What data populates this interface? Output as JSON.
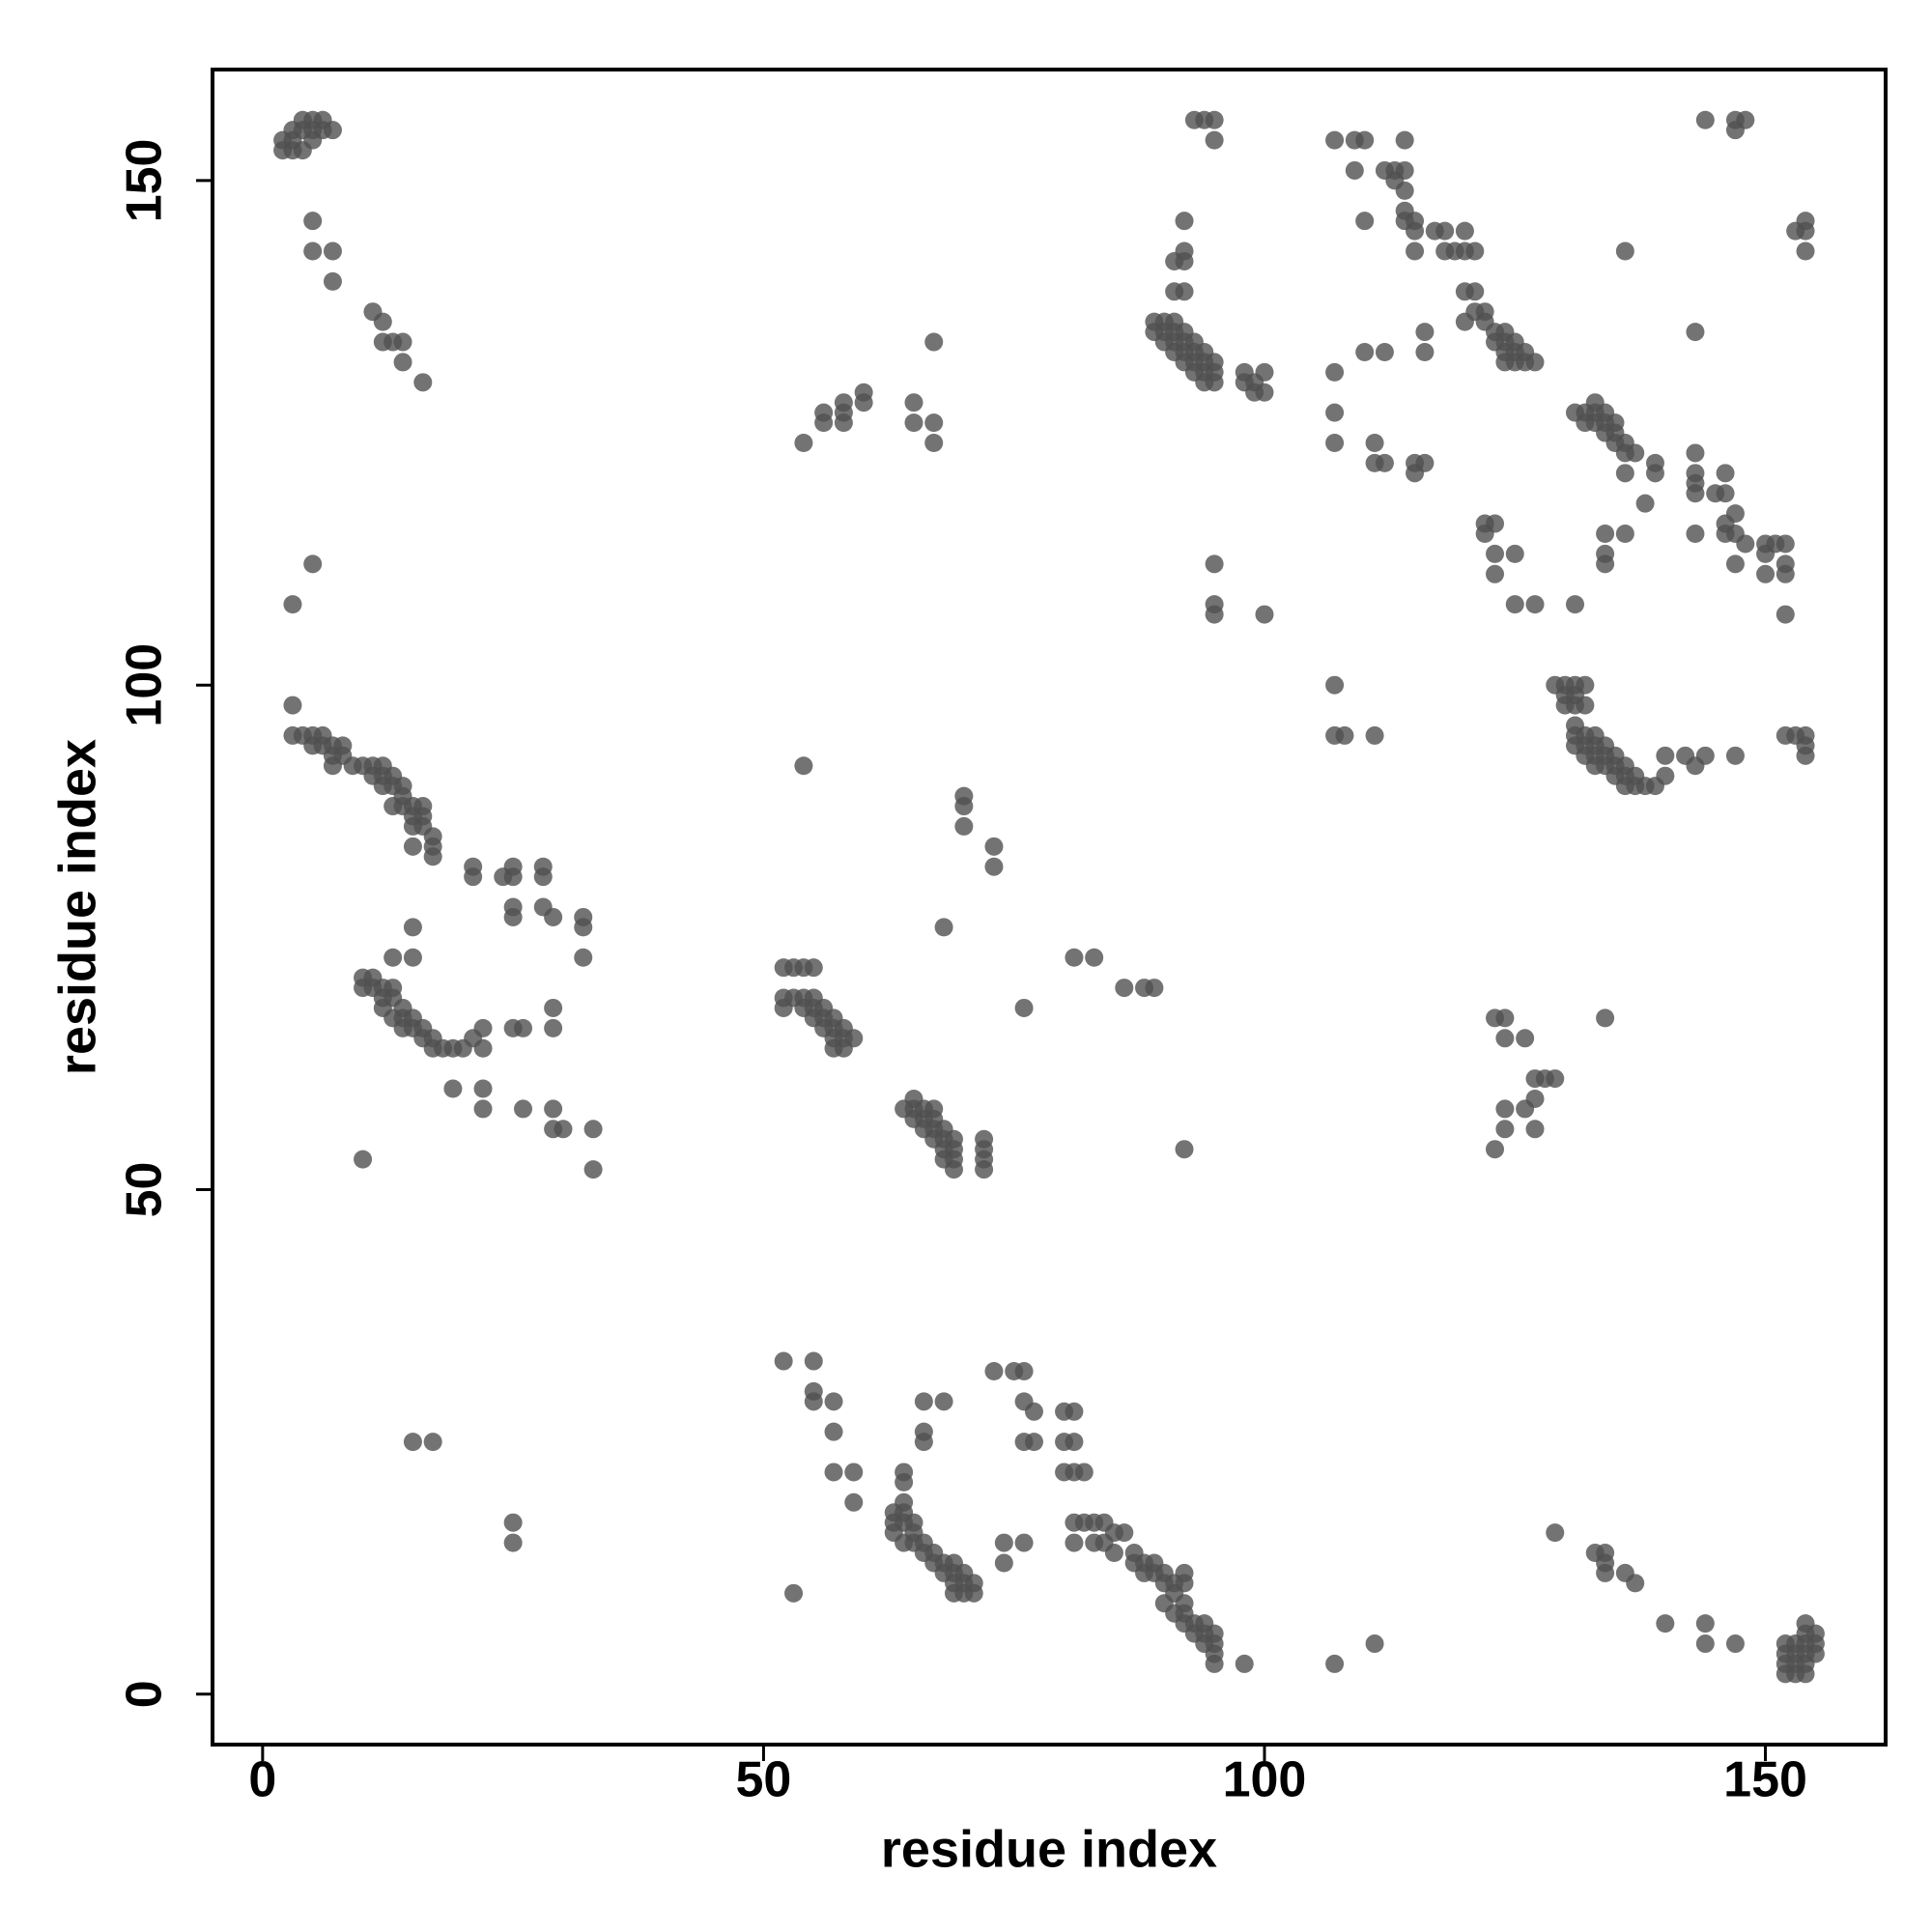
{
  "chart_data": {
    "type": "scatter",
    "xlabel": "residue index",
    "ylabel": "residue index",
    "xlim": [
      -5,
      162
    ],
    "ylim": [
      -5,
      161
    ],
    "xticks": [
      0,
      50,
      100,
      150
    ],
    "yticks": [
      0,
      50,
      100,
      150
    ],
    "x": [
      2,
      2,
      3,
      3,
      3,
      4,
      4,
      5,
      5,
      6,
      6,
      7,
      4,
      5,
      5,
      5,
      7,
      7,
      11,
      12,
      12,
      13,
      14,
      14,
      16,
      3,
      4,
      5,
      5,
      6,
      6,
      7,
      7,
      8,
      8,
      7,
      9,
      10,
      11,
      11,
      12,
      12,
      12,
      13,
      13,
      14,
      14,
      13,
      14,
      15,
      15,
      16,
      16,
      15,
      16,
      17,
      17,
      15,
      17,
      3,
      3,
      5,
      10,
      11,
      10,
      11,
      12,
      13,
      12,
      13,
      12,
      14,
      13,
      14,
      15,
      14,
      15,
      16,
      16,
      17,
      17,
      18,
      19,
      20,
      21,
      22,
      22,
      13,
      15,
      15,
      10,
      21,
      21,
      24,
      25,
      25,
      28,
      28,
      25,
      25,
      28,
      29,
      32,
      32,
      32,
      29,
      29,
      25,
      26,
      22,
      19,
      22,
      26,
      29,
      29,
      30,
      33,
      33,
      15,
      17,
      25,
      25,
      52,
      53,
      54,
      55,
      52,
      53,
      54,
      55,
      52,
      54,
      55,
      56,
      55,
      56,
      57,
      56,
      57,
      58,
      57,
      58,
      59,
      58,
      57,
      64,
      65,
      65,
      66,
      67,
      65,
      66,
      67,
      66,
      67,
      68,
      67,
      68,
      69,
      68,
      69,
      68,
      69,
      69,
      72,
      72,
      72,
      72,
      70,
      70,
      70,
      73,
      73,
      68,
      76,
      54,
      81,
      83,
      86,
      88,
      89,
      92,
      54,
      56,
      56,
      58,
      58,
      58,
      60,
      60,
      65,
      67,
      65,
      67,
      67,
      52,
      55,
      55,
      55,
      57,
      57,
      57,
      59,
      59,
      63,
      63,
      63,
      64,
      64,
      64,
      65,
      65,
      64,
      65,
      66,
      66,
      67,
      67,
      68,
      68,
      69,
      69,
      70,
      70,
      69,
      69,
      70,
      71,
      71,
      66,
      68,
      66,
      66,
      64,
      64,
      73,
      75,
      76,
      76,
      77,
      76,
      77,
      80,
      81,
      80,
      81,
      80,
      81,
      82,
      81,
      82,
      83,
      84,
      81,
      83,
      84,
      85,
      86,
      85,
      87,
      87,
      88,
      89,
      88,
      89,
      90,
      90,
      91,
      92,
      91,
      90,
      92,
      91,
      92,
      92,
      93,
      94,
      93,
      94,
      95,
      94,
      95,
      95,
      95,
      92,
      74,
      74,
      76,
      53,
      98,
      107,
      111,
      89,
      90,
      91,
      89,
      90,
      91,
      92,
      90,
      91,
      92,
      93,
      91,
      92,
      93,
      94,
      92,
      93,
      94,
      95,
      93,
      94,
      95,
      94,
      95,
      91,
      91,
      92,
      92,
      92,
      92,
      94,
      93,
      95,
      95,
      98,
      98,
      99,
      100,
      99,
      100,
      95,
      95,
      95,
      100,
      107,
      109,
      110,
      109,
      110,
      112,
      113,
      113,
      114,
      114,
      114,
      114,
      114,
      115,
      115,
      115,
      117,
      118,
      118,
      119,
      120,
      120,
      121,
      120,
      121,
      120,
      121,
      122,
      122,
      123,
      123,
      124,
      124,
      124,
      125,
      125,
      126,
      125,
      126,
      127,
      124,
      136,
      143,
      144,
      147,
      148,
      147,
      107,
      110,
      112,
      116,
      116,
      107,
      107,
      111,
      111,
      112,
      115,
      115,
      116,
      122,
      123,
      122,
      123,
      123,
      125,
      125,
      127,
      131,
      134,
      134,
      134,
      136,
      131,
      132,
      132,
      133,
      133,
      133,
      134,
      134,
      134,
      135,
      135,
      135,
      136,
      136,
      137,
      136,
      139,
      139,
      138,
      143,
      143,
      143,
      143,
      143,
      145,
      146,
      146,
      146,
      147,
      146,
      147,
      148,
      150,
      151,
      152,
      150,
      152,
      147,
      150,
      152,
      152,
      153,
      154,
      154,
      154,
      153,
      154,
      154,
      154,
      152,
      129,
      130,
      131,
      130,
      131,
      132,
      130,
      131,
      132,
      131,
      131,
      132,
      133,
      131,
      132,
      133,
      134,
      132,
      133,
      134,
      135,
      133,
      134,
      135,
      136,
      135,
      136,
      137,
      136,
      137,
      138,
      139,
      140,
      140,
      142,
      143,
      144,
      147,
      107,
      107,
      108,
      111,
      123,
      124,
      124,
      126,
      127,
      128,
      129,
      127,
      124,
      126,
      124,
      127,
      123,
      134,
      129,
      133,
      134,
      134,
      134,
      136,
      137,
      140,
      144,
      144,
      147,
      152,
      153,
      154,
      152,
      153,
      154,
      152,
      153,
      154,
      155,
      152,
      153,
      154,
      155,
      154,
      155,
      154
    ],
    "series": [
      {
        "color": "#505050",
        "values": [
          153,
          154,
          153,
          154,
          155,
          155,
          156,
          156,
          155,
          156,
          155,
          155,
          153,
          154,
          146,
          143,
          143,
          140,
          137,
          136,
          134,
          134,
          134,
          132,
          130,
          95,
          95,
          95,
          94,
          95,
          94,
          94,
          93,
          94,
          93,
          92,
          92,
          92,
          92,
          91,
          92,
          91,
          90,
          90,
          91,
          90,
          89,
          88,
          88,
          88,
          87,
          88,
          87,
          86,
          86,
          85,
          84,
          84,
          83,
          98,
          108,
          112,
          71,
          71,
          70,
          70,
          70,
          70,
          69,
          69,
          68,
          68,
          67,
          67,
          67,
          66,
          66,
          66,
          65,
          65,
          64,
          64,
          64,
          64,
          65,
          64,
          66,
          73,
          73,
          76,
          53,
          82,
          81,
          81,
          82,
          81,
          82,
          81,
          78,
          77,
          78,
          77,
          77,
          76,
          73,
          68,
          66,
          66,
          66,
          60,
          60,
          58,
          58,
          58,
          56,
          56,
          56,
          52,
          25,
          25,
          17,
          15,
          72,
          72,
          72,
          72,
          69,
          69,
          69,
          69,
          68,
          68,
          68,
          68,
          67,
          67,
          67,
          66,
          66,
          66,
          65,
          65,
          65,
          64,
          64,
          58,
          59,
          58,
          58,
          58,
          57,
          57,
          57,
          56,
          56,
          56,
          55,
          55,
          55,
          54,
          54,
          53,
          53,
          52,
          55,
          54,
          53,
          52,
          89,
          88,
          86,
          84,
          82,
          76,
          68,
          92,
          73,
          73,
          70,
          70,
          70,
          54,
          124,
          126,
          127,
          127,
          128,
          126,
          129,
          128,
          128,
          126,
          126,
          124,
          134,
          33,
          33,
          30,
          29,
          29,
          26,
          22,
          22,
          19,
          18,
          17,
          16,
          19,
          18,
          17,
          17,
          16,
          15,
          15,
          15,
          14,
          14,
          13,
          13,
          12,
          12,
          13,
          12,
          11,
          11,
          10,
          10,
          10,
          11,
          29,
          29,
          26,
          25,
          22,
          21,
          32,
          32,
          32,
          29,
          28,
          25,
          25,
          28,
          28,
          25,
          25,
          22,
          22,
          22,
          17,
          17,
          17,
          17,
          15,
          15,
          15,
          16,
          16,
          14,
          14,
          13,
          13,
          13,
          12,
          12,
          12,
          11,
          11,
          11,
          10,
          9,
          9,
          8,
          8,
          7,
          7,
          7,
          6,
          6,
          6,
          5,
          5,
          4,
          3,
          12,
          15,
          13,
          15,
          10,
          3,
          3,
          5,
          136,
          136,
          136,
          135,
          135,
          135,
          135,
          134,
          134,
          134,
          134,
          133,
          133,
          133,
          133,
          132,
          132,
          132,
          132,
          131,
          131,
          131,
          130,
          130,
          139,
          142,
          142,
          143,
          146,
          139,
          156,
          156,
          156,
          154,
          131,
          130,
          130,
          131,
          129,
          129,
          112,
          108,
          107,
          107,
          154,
          154,
          154,
          151,
          146,
          151,
          151,
          150,
          154,
          151,
          149,
          147,
          146,
          146,
          145,
          143,
          145,
          145,
          143,
          143,
          145,
          143,
          143,
          139,
          139,
          136,
          137,
          137,
          136,
          135,
          134,
          135,
          134,
          133,
          134,
          133,
          133,
          132,
          132,
          132,
          132,
          143,
          135,
          156,
          156,
          156,
          155,
          131,
          133,
          133,
          135,
          133,
          127,
          124,
          124,
          122,
          122,
          122,
          121,
          122,
          116,
          116,
          115,
          113,
          111,
          113,
          108,
          108,
          108,
          113,
          112,
          115,
          115,
          127,
          127,
          126,
          128,
          127,
          126,
          127,
          126,
          125,
          126,
          125,
          124,
          124,
          123,
          123,
          121,
          122,
          121,
          118,
          123,
          121,
          120,
          119,
          115,
          119,
          119,
          121,
          116,
          117,
          115,
          115,
          114,
          114,
          114,
          114,
          113,
          112,
          112,
          111,
          111,
          107,
          145,
          146,
          145,
          143,
          95,
          95,
          94,
          93,
          95,
          100,
          100,
          100,
          99,
          99,
          100,
          98,
          98,
          98,
          96,
          95,
          95,
          95,
          94,
          94,
          94,
          94,
          93,
          93,
          93,
          93,
          92,
          92,
          92,
          92,
          91,
          91,
          91,
          90,
          90,
          90,
          90,
          91,
          93,
          93,
          92,
          93,
          93,
          100,
          95,
          95,
          95,
          67,
          67,
          65,
          65,
          61,
          61,
          61,
          59,
          58,
          58,
          56,
          56,
          54,
          67,
          16,
          14,
          14,
          13,
          12,
          12,
          11,
          7,
          7,
          5,
          5,
          2,
          2,
          2,
          3,
          3,
          3,
          4,
          4,
          4,
          4,
          5,
          5,
          5,
          5,
          6,
          6,
          7
        ]
      }
    ]
  }
}
